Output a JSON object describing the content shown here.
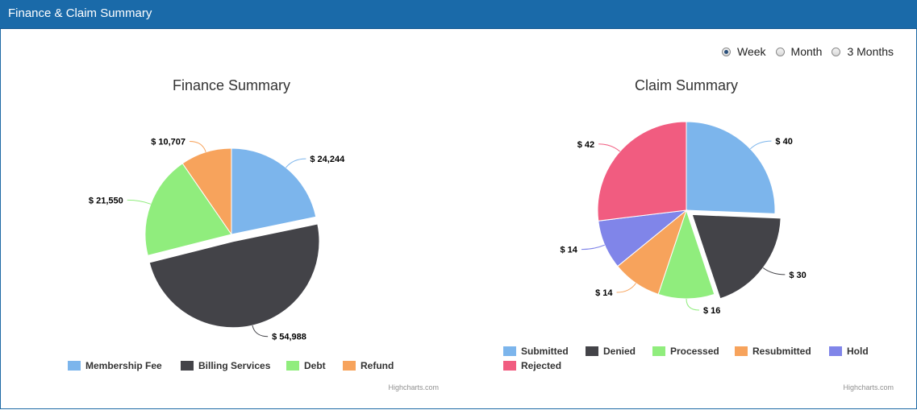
{
  "header": {
    "title": "Finance & Claim Summary"
  },
  "period_options": [
    {
      "label": "Week",
      "checked": true
    },
    {
      "label": "Month",
      "checked": false
    },
    {
      "label": "3 Months",
      "checked": false
    }
  ],
  "credits": "Highcharts.com",
  "chart_data": [
    {
      "type": "pie",
      "title": "Finance Summary",
      "categories": [
        "Membership Fee",
        "Billing Services",
        "Debt",
        "Refund"
      ],
      "values": [
        24244,
        54988,
        21550,
        10707
      ],
      "data_labels": [
        "$ 24,244",
        "$ 54,988",
        "$ 21,550",
        "$ 10,707"
      ],
      "colors": [
        "#7cb5ec",
        "#434348",
        "#90ed7d",
        "#f7a35c"
      ],
      "sliced": [
        false,
        true,
        false,
        false
      ],
      "legend": "bottom"
    },
    {
      "type": "pie",
      "title": "Claim Summary",
      "categories": [
        "Submitted",
        "Denied",
        "Processed",
        "Resubmitted",
        "Hold",
        "Rejected"
      ],
      "values": [
        40,
        30,
        16,
        14,
        14,
        42
      ],
      "data_labels": [
        "$ 40",
        "$ 30",
        "$ 16",
        "$ 14",
        "$ 14",
        "$ 42"
      ],
      "colors": [
        "#7cb5ec",
        "#434348",
        "#90ed7d",
        "#f7a35c",
        "#8085e9",
        "#f15c80"
      ],
      "sliced": [
        false,
        true,
        false,
        false,
        false,
        false
      ],
      "legend": "bottom"
    }
  ]
}
